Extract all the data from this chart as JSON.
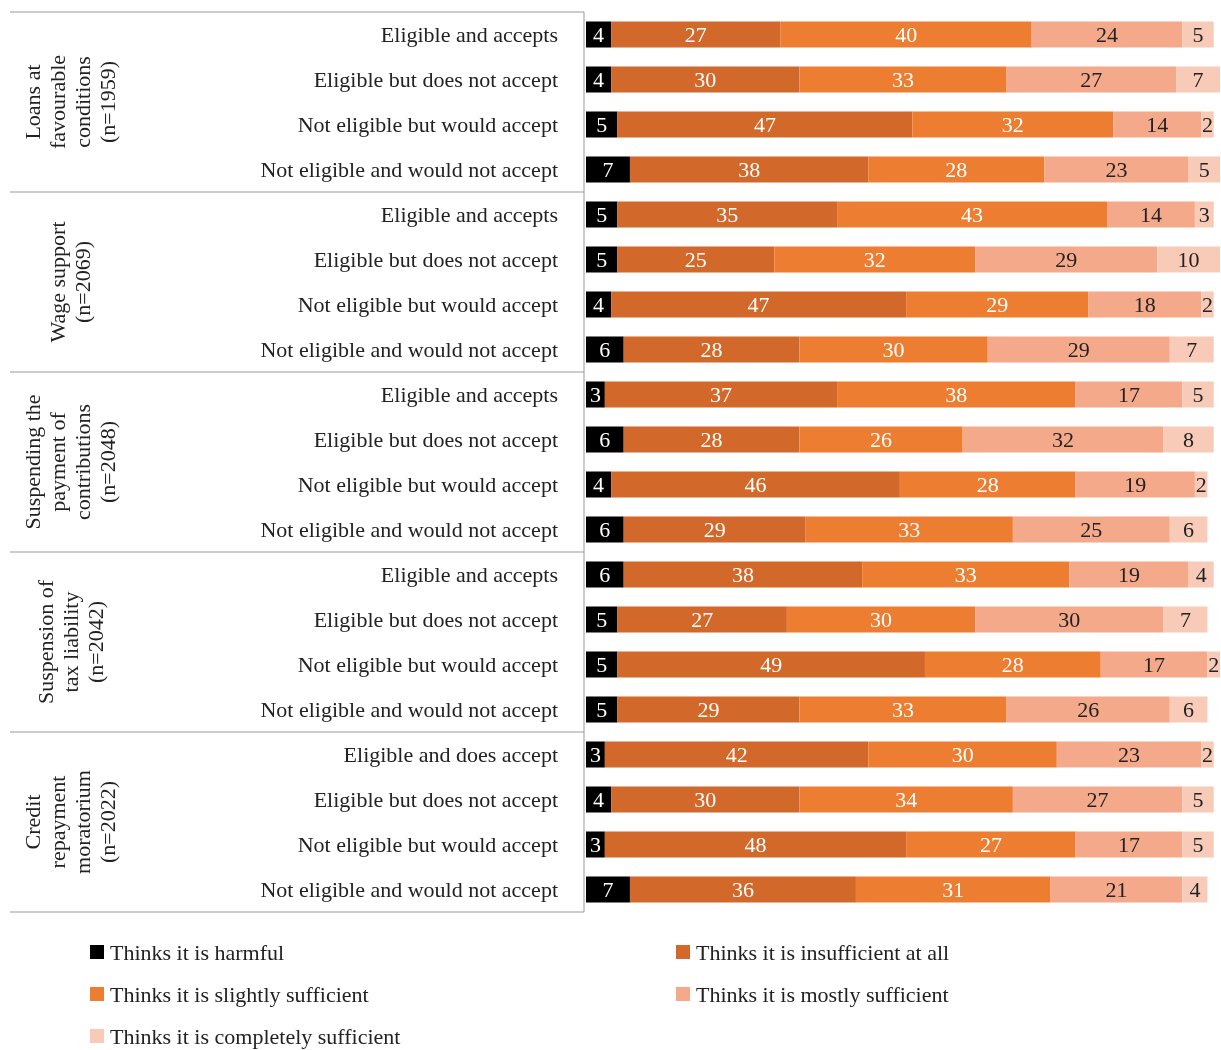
{
  "chart_data": {
    "type": "bar",
    "orientation": "horizontal",
    "stacked": true,
    "data_labels": true,
    "legend": "bottom",
    "categories": [
      "Eligible and accepts",
      "Eligible but does not accept",
      "Not eligible but would accept",
      "Not eligible and would not accept",
      "Eligible and accepts",
      "Eligible but does not accept",
      "Not eligible but would accept",
      "Not eligible and would not accept",
      "Eligible and accepts",
      "Eligible but does not accept",
      "Not eligible but would accept",
      "Not eligible and would not accept",
      "Eligible and accepts",
      "Eligible but does not accept",
      "Not eligible but would accept",
      "Not eligible and would not accept",
      "Eligible and does accept",
      "Eligible but does not accept",
      "Not eligible but would accept",
      "Not eligible and would not accept"
    ],
    "annotations": [
      "Loans at favourable conditions (n=1959)",
      "Wage support (n=2069)",
      "Suspending the payment of contributions (n=2048)",
      "Suspension of tax liability (n=2042)",
      "Credit repayment moratorium (n=2022)"
    ],
    "series": [
      {
        "name": "Thinks it is harmful",
        "color": "#000000",
        "values": [
          4,
          4,
          5,
          7,
          5,
          5,
          4,
          6,
          3,
          6,
          4,
          6,
          6,
          5,
          5,
          5,
          3,
          4,
          3,
          7
        ]
      },
      {
        "name": "Thinks it is insufficient at all",
        "color": "#d2692a",
        "values": [
          27,
          30,
          47,
          38,
          35,
          25,
          47,
          28,
          37,
          28,
          46,
          29,
          38,
          27,
          49,
          29,
          42,
          30,
          48,
          36
        ]
      },
      {
        "name": "Thinks it is slightly sufficient",
        "color": "#ed7d31",
        "values": [
          40,
          33,
          32,
          28,
          43,
          32,
          29,
          30,
          38,
          26,
          28,
          33,
          33,
          30,
          28,
          33,
          30,
          34,
          27,
          31
        ]
      },
      {
        "name": "Thinks it is mostly sufficient",
        "color": "#f4a98a",
        "values": [
          24,
          27,
          14,
          23,
          14,
          29,
          18,
          29,
          17,
          32,
          19,
          25,
          19,
          30,
          17,
          26,
          23,
          27,
          17,
          21
        ]
      },
      {
        "name": "Thinks it is completely sufficient",
        "color": "#f8cbb8",
        "values": [
          5,
          7,
          2,
          5,
          3,
          10,
          2,
          7,
          5,
          8,
          2,
          6,
          4,
          7,
          2,
          6,
          2,
          5,
          5,
          4
        ]
      }
    ]
  }
}
